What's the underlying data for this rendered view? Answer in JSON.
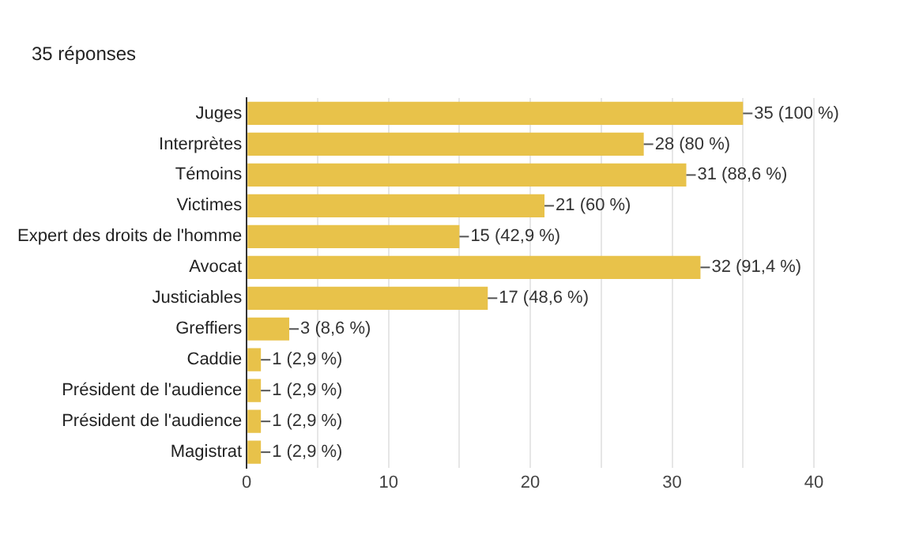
{
  "chart_data": {
    "type": "bar",
    "orientation": "horizontal",
    "title": "35 réponses",
    "categories": [
      "Juges",
      "Interprètes",
      "Témoins",
      "Victimes",
      "Expert des droits de l'homme",
      "Avocat",
      "Justiciables",
      "Greffiers",
      "Caddie",
      "Président de l'audience",
      "Président de l'audience",
      "Magistrat"
    ],
    "values": [
      35,
      28,
      31,
      21,
      15,
      32,
      17,
      3,
      1,
      1,
      1,
      1
    ],
    "value_labels": [
      "35 (100 %)",
      "28 (80 %)",
      "31 (88,6 %)",
      "21 (60 %)",
      "15 (42,9 %)",
      "32 (91,4 %)",
      "17 (48,6 %)",
      "3 (8,6 %)",
      "1 (2,9 %)",
      "1 (2,9 %)",
      "1 (2,9 %)",
      "1 (2,9 %)"
    ],
    "color": "#e8c24a",
    "xlim": [
      0,
      40
    ],
    "xticks": [
      0,
      {
        "value": 5,
        "label": null
      },
      10,
      {
        "value": 15,
        "label": null
      },
      20,
      {
        "value": 25,
        "label": null
      },
      30,
      {
        "value": 35,
        "label": null
      },
      40
    ],
    "grid": "x",
    "legend": false
  }
}
